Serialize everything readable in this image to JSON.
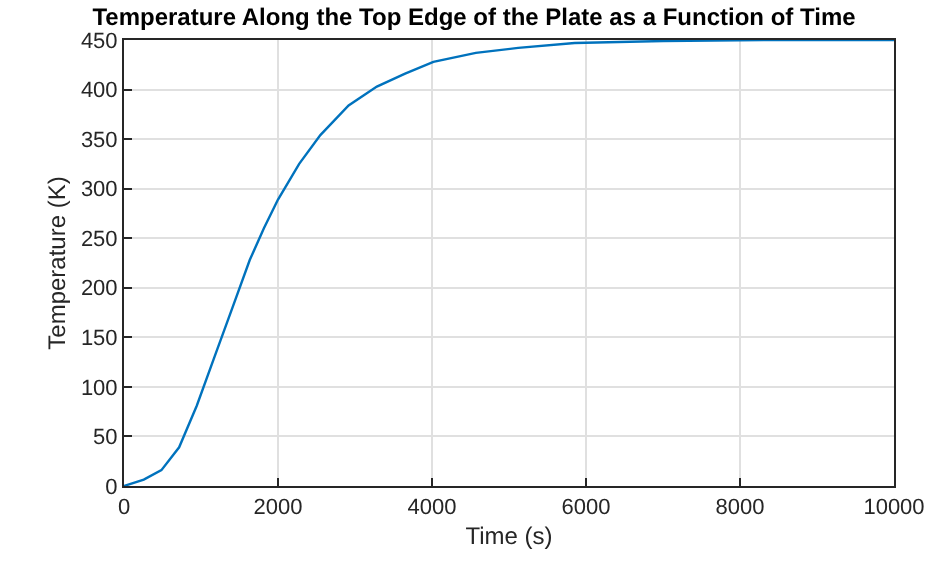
{
  "chart_data": {
    "type": "line",
    "title": "Temperature Along the Top Edge of the Plate as a Function of Time",
    "xlabel": "Time (s)",
    "ylabel": "Temperature (K)",
    "x": [
      0,
      257,
      486,
      716,
      945,
      1174,
      1404,
      1633,
      1817,
      2000,
      2275,
      2550,
      2917,
      3284,
      3651,
      4018,
      4569,
      5119,
      5853,
      7000,
      8500,
      10000
    ],
    "series": [
      {
        "color": "#0072bd",
        "values": [
          0,
          6.5,
          16,
          39,
          81,
          130,
          179,
          228,
          260,
          289,
          325,
          354,
          384,
          403,
          416,
          428,
          437,
          442,
          447,
          449,
          450,
          450
        ]
      }
    ],
    "xlim": [
      0,
      10000
    ],
    "ylim": [
      0,
      450
    ],
    "xticks": [
      0,
      2000,
      4000,
      6000,
      8000,
      10000
    ],
    "yticks": [
      0,
      50,
      100,
      150,
      200,
      250,
      300,
      350,
      400,
      450
    ],
    "grid": true,
    "line_style": "solid",
    "marker": "none"
  }
}
